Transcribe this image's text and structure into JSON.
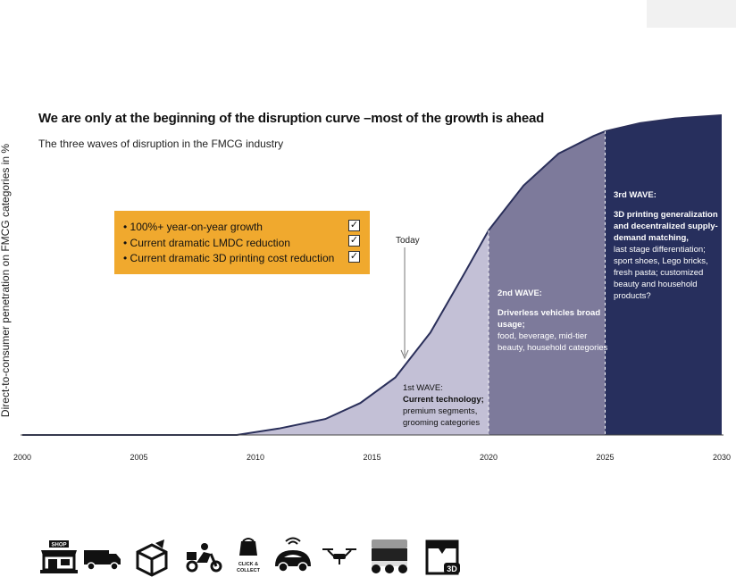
{
  "title": "We are only at the beginning of the disruption curve –most of the growth is ahead",
  "subtitle": "The three waves of disruption in the FMCG industry",
  "callout": {
    "items": [
      "• 100%+ year-on-year growth",
      "• Current dramatic LMDC reduction",
      "• Current dramatic 3D printing cost reduction"
    ],
    "check": "✓"
  },
  "today_label": "Today",
  "waves": [
    {
      "title": "1st WAVE:",
      "bold": "Current technology;",
      "text": "premium segments, grooming categories",
      "color": "#c3c0d6"
    },
    {
      "title": "2nd WAVE:",
      "bold": "Driverless vehicles broad usage;",
      "text": "food, beverage, mid-tier beauty, household categories",
      "color": "#7d7a9b"
    },
    {
      "title": "3rd WAVE:",
      "bold": "3D printing generalization and decentralized supply-demand matching,",
      "text": "last stage differentiation; sport shoes, Lego bricks, fresh pasta; customized beauty and household products?",
      "color": "#272f5d"
    }
  ],
  "icons": [
    "shop-icon",
    "truck-icon",
    "parcel-icon",
    "scooter-delivery-icon",
    "click-and-collect-icon",
    "connected-car-icon",
    "drone-icon",
    "delivery-robot-icon",
    "3d-printer-icon"
  ],
  "icon_texts": {
    "shop": "SHOP",
    "click": "CLICK &",
    "collect": "COLLECT",
    "printer": "3D"
  },
  "chart_data": {
    "type": "area",
    "title": "We are only at the beginning of the disruption curve –most of the growth is ahead",
    "subtitle": "The three waves of disruption in the FMCG industry",
    "xlabel": "",
    "ylabel": "Direct-to-consumer penetration on FMCG  categories  in %",
    "xlim": [
      2000,
      2030
    ],
    "ylim": [
      0,
      100
    ],
    "x_ticks": [
      2000,
      2005,
      2010,
      2015,
      2020,
      2025,
      2030
    ],
    "today_year": 2016.4,
    "wave_boundaries": [
      2020,
      2025
    ],
    "curve": {
      "x": [
        2000,
        2009.2,
        2011,
        2013,
        2014.5,
        2016,
        2017.5,
        2019,
        2020,
        2021.5,
        2023,
        2024.5,
        2025,
        2026.5,
        2028,
        2030
      ],
      "y": [
        0,
        0,
        2,
        5,
        10,
        18,
        32,
        51,
        64,
        78,
        88,
        93.5,
        95,
        97.5,
        99,
        100
      ]
    }
  }
}
